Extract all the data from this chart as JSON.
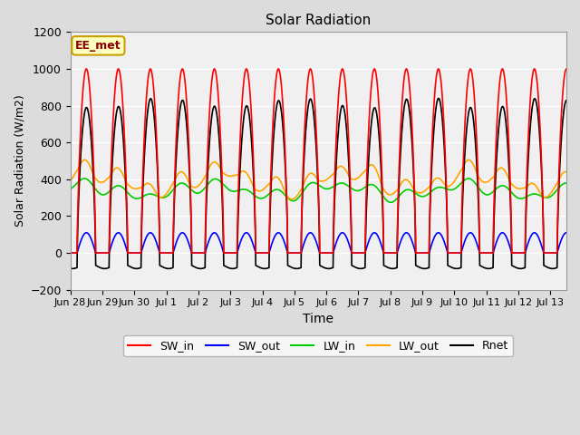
{
  "title": "Solar Radiation",
  "xlabel": "Time",
  "ylabel": "Solar Radiation (W/m2)",
  "ylim": [
    -200,
    1200
  ],
  "yticks": [
    -200,
    0,
    200,
    400,
    600,
    800,
    1000,
    1200
  ],
  "annotation_text": "EE_met",
  "annotation_color": "#8B0000",
  "annotation_bg": "#FFFFC0",
  "annotation_border": "#C8A000",
  "num_days": 15.5,
  "xtick_labels": [
    "Jun 28",
    "Jun 29",
    "Jun 30",
    "Jul 1",
    "Jul 2",
    "Jul 3",
    "Jul 4",
    "Jul 5",
    "Jul 6",
    "Jul 7",
    "Jul 8",
    "Jul 9",
    "Jul 10",
    "Jul 11",
    "Jul 12",
    "Jul 13"
  ],
  "SW_in_color": "#FF0000",
  "SW_out_color": "#0000FF",
  "LW_in_color": "#00CC00",
  "LW_out_color": "#FFA500",
  "Rnet_color": "#000000",
  "SW_in_peak": 1000,
  "SW_out_peak": 110,
  "LW_in_base": 340,
  "LW_out_base": 385,
  "Rnet_night": -70,
  "fig_facecolor": "#DCDCDC",
  "ax_facecolor": "#F0F0F0",
  "grid_color": "#FFFFFF",
  "legend_entries": [
    "SW_in",
    "SW_out",
    "LW_in",
    "LW_out",
    "Rnet"
  ]
}
